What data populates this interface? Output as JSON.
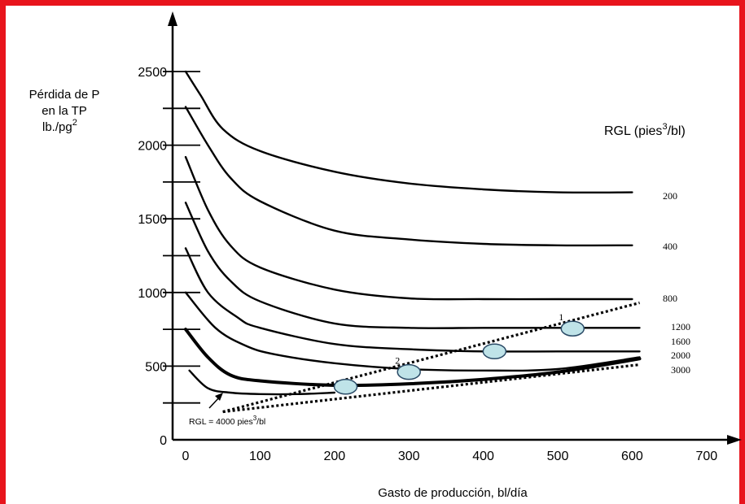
{
  "chart_data": {
    "type": "line",
    "ylabel_lines": [
      "Pérdida de P",
      "en la TP",
      "lb./pg",
      "2"
    ],
    "xlabel": "Gasto de producción, bl/día",
    "legend_title": [
      "RGL (pies",
      "3",
      "/bl)"
    ],
    "xlim": [
      0,
      700
    ],
    "ylim": [
      0,
      2500
    ],
    "x_ticks": [
      "0",
      "100",
      "200",
      "300",
      "400",
      "500",
      "600",
      "700"
    ],
    "y_ticks": [
      "0",
      "500",
      "1000",
      "1500",
      "2000",
      "2500"
    ],
    "series": [
      {
        "name": "200",
        "points": [
          [
            0,
            2500
          ],
          [
            20,
            2340
          ],
          [
            50,
            2110
          ],
          [
            100,
            1960
          ],
          [
            200,
            1820
          ],
          [
            300,
            1740
          ],
          [
            400,
            1700
          ],
          [
            500,
            1680
          ],
          [
            600,
            1680
          ]
        ]
      },
      {
        "name": "400",
        "points": [
          [
            0,
            2260
          ],
          [
            30,
            2000
          ],
          [
            60,
            1780
          ],
          [
            100,
            1620
          ],
          [
            200,
            1420
          ],
          [
            300,
            1360
          ],
          [
            400,
            1330
          ],
          [
            500,
            1320
          ],
          [
            600,
            1320
          ]
        ]
      },
      {
        "name": "800",
        "points": [
          [
            0,
            1920
          ],
          [
            30,
            1560
          ],
          [
            60,
            1320
          ],
          [
            100,
            1170
          ],
          [
            200,
            1020
          ],
          [
            300,
            960
          ],
          [
            400,
            955
          ],
          [
            500,
            955
          ],
          [
            600,
            955
          ]
        ]
      },
      {
        "name": "1200",
        "points": [
          [
            0,
            1610
          ],
          [
            30,
            1280
          ],
          [
            60,
            1080
          ],
          [
            100,
            940
          ],
          [
            200,
            790
          ],
          [
            300,
            760
          ],
          [
            400,
            760
          ],
          [
            500,
            760
          ],
          [
            610,
            760
          ]
        ]
      },
      {
        "name": "1600",
        "points": [
          [
            0,
            1300
          ],
          [
            30,
            1000
          ],
          [
            70,
            830
          ],
          [
            100,
            760
          ],
          [
            200,
            650
          ],
          [
            300,
            615
          ],
          [
            400,
            600
          ],
          [
            500,
            600
          ],
          [
            610,
            600
          ]
        ]
      },
      {
        "name": "2000",
        "points": [
          [
            0,
            1000
          ],
          [
            40,
            760
          ],
          [
            80,
            640
          ],
          [
            120,
            580
          ],
          [
            200,
            520
          ],
          [
            300,
            480
          ],
          [
            400,
            470
          ],
          [
            500,
            480
          ],
          [
            610,
            560
          ]
        ]
      },
      {
        "name": "3000",
        "points": [
          [
            0,
            750
          ],
          [
            30,
            560
          ],
          [
            60,
            440
          ],
          [
            100,
            400
          ],
          [
            200,
            370
          ],
          [
            300,
            380
          ],
          [
            400,
            410
          ],
          [
            500,
            460
          ],
          [
            610,
            550
          ]
        ]
      },
      {
        "name": "RGL = 4000 pies³/bl",
        "points": [
          [
            5,
            470
          ],
          [
            30,
            350
          ],
          [
            60,
            320
          ],
          [
            100,
            310
          ],
          [
            150,
            310
          ],
          [
            200,
            320
          ]
        ]
      }
    ],
    "curve_labels": [
      "200",
      "400",
      "800",
      "1200",
      "1600",
      "2000",
      "3000"
    ],
    "note": {
      "text": "RGL = 4000 pies",
      "sup": "3",
      "suffix": "/bl"
    },
    "dotted_lines": [
      {
        "points": [
          [
            50,
            190
          ],
          [
            610,
            930
          ]
        ]
      },
      {
        "points": [
          [
            50,
            190
          ],
          [
            610,
            510
          ]
        ]
      }
    ],
    "operating_points": [
      {
        "label": "",
        "x": 215,
        "y": 360
      },
      {
        "label": "2",
        "x": 300,
        "y": 460
      },
      {
        "label": "",
        "x": 415,
        "y": 600
      },
      {
        "label": "1",
        "x": 520,
        "y": 755
      }
    ]
  }
}
